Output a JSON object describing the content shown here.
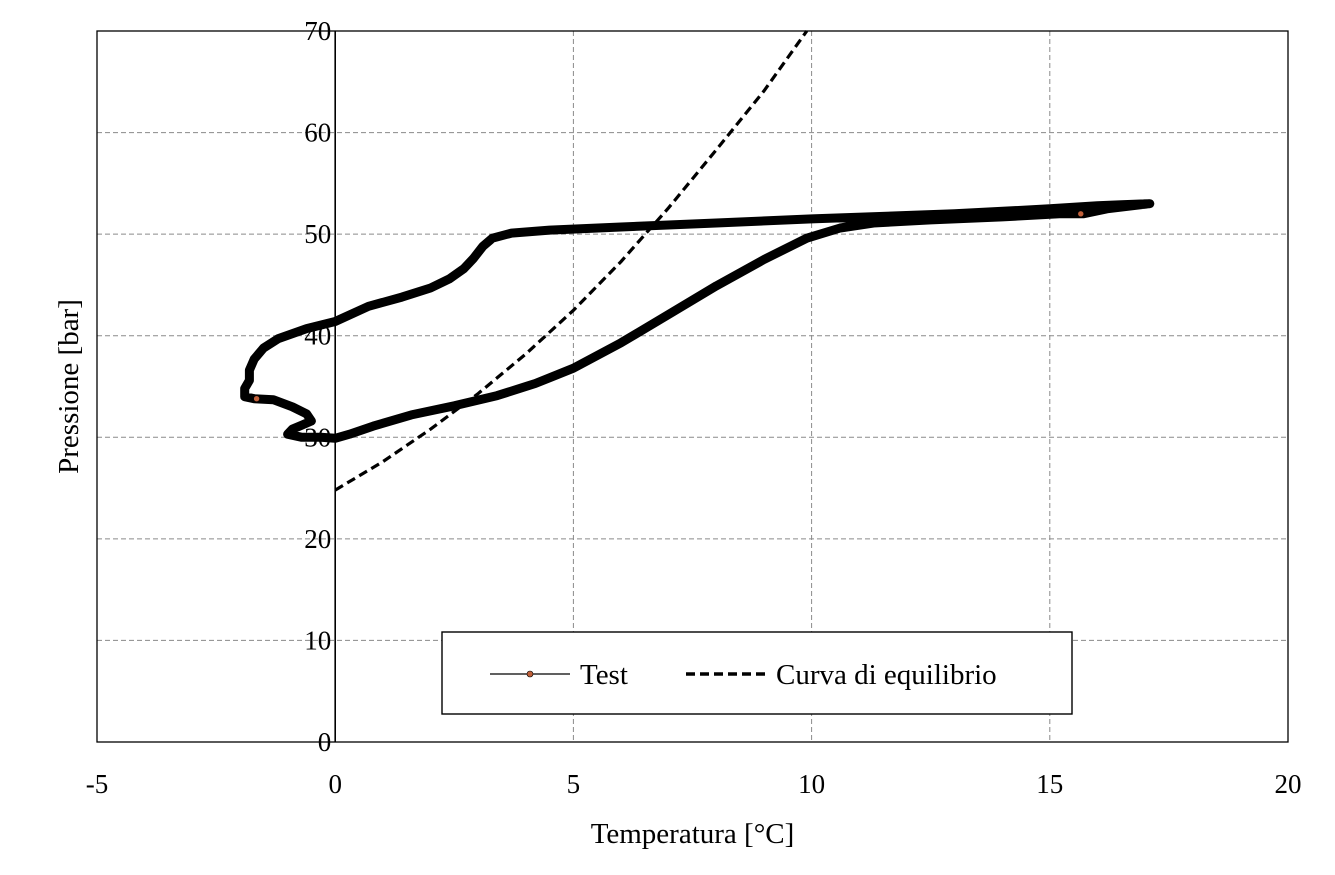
{
  "chart_data": {
    "type": "line",
    "title": "",
    "xlabel": "Temperatura [°C]",
    "ylabel": "Pressione [bar]",
    "xlim": [
      -5,
      20
    ],
    "ylim": [
      0,
      70
    ],
    "xticks": [
      -5,
      0,
      5,
      10,
      15,
      20
    ],
    "yticks": [
      0,
      10,
      20,
      30,
      40,
      50,
      60,
      70
    ],
    "grid": true,
    "legend_position": "bottom-center",
    "series": [
      {
        "name": "Test",
        "style": "solid-thick",
        "color": "#000000",
        "marker_color": "#c0603a",
        "points": [
          [
            -1.7,
            33.8
          ],
          [
            -1.3,
            33.7
          ],
          [
            -0.9,
            33.0
          ],
          [
            -0.6,
            32.3
          ],
          [
            -0.5,
            31.6
          ],
          [
            -0.7,
            31.2
          ],
          [
            -0.9,
            30.8
          ],
          [
            -1.0,
            30.3
          ],
          [
            -0.7,
            30.0
          ],
          [
            -0.3,
            30.0
          ],
          [
            0.0,
            29.9
          ],
          [
            0.3,
            30.3
          ],
          [
            0.8,
            31.1
          ],
          [
            1.6,
            32.2
          ],
          [
            2.5,
            33.1
          ],
          [
            3.4,
            34.1
          ],
          [
            4.2,
            35.3
          ],
          [
            5.0,
            36.8
          ],
          [
            6.0,
            39.3
          ],
          [
            7.0,
            42.1
          ],
          [
            8.0,
            44.9
          ],
          [
            9.0,
            47.5
          ],
          [
            9.9,
            49.6
          ],
          [
            10.6,
            50.6
          ],
          [
            11.3,
            51.1
          ],
          [
            12.5,
            51.4
          ],
          [
            14.0,
            51.7
          ],
          [
            15.2,
            52.0
          ],
          [
            15.7,
            52.0
          ],
          [
            16.2,
            52.5
          ],
          [
            17.1,
            53.0
          ],
          [
            16.5,
            52.9
          ],
          [
            16.0,
            52.8
          ],
          [
            15.0,
            52.5
          ],
          [
            13.0,
            52.0
          ],
          [
            10.0,
            51.5
          ],
          [
            8.0,
            51.1
          ],
          [
            6.0,
            50.7
          ],
          [
            4.5,
            50.4
          ],
          [
            3.7,
            50.1
          ],
          [
            3.3,
            49.6
          ],
          [
            3.1,
            48.8
          ],
          [
            2.9,
            47.6
          ],
          [
            2.7,
            46.6
          ],
          [
            2.4,
            45.6
          ],
          [
            2.0,
            44.7
          ],
          [
            1.4,
            43.8
          ],
          [
            0.7,
            42.9
          ],
          [
            0.0,
            41.4
          ],
          [
            -0.6,
            40.7
          ],
          [
            -1.2,
            39.7
          ],
          [
            -1.5,
            38.8
          ],
          [
            -1.7,
            37.7
          ],
          [
            -1.8,
            36.6
          ],
          [
            -1.8,
            35.6
          ],
          [
            -1.9,
            34.8
          ],
          [
            -1.9,
            34.0
          ],
          [
            -1.7,
            33.8
          ]
        ]
      },
      {
        "name": "Curva di equilibrio",
        "style": "dashed",
        "color": "#000000",
        "points": [
          [
            0.0,
            24.8
          ],
          [
            1.0,
            27.6
          ],
          [
            2.0,
            30.8
          ],
          [
            3.0,
            34.3
          ],
          [
            4.0,
            38.2
          ],
          [
            5.0,
            42.5
          ],
          [
            6.0,
            47.3
          ],
          [
            7.0,
            52.6
          ],
          [
            8.0,
            58.3
          ],
          [
            9.0,
            64.1
          ],
          [
            9.9,
            70.0
          ]
        ]
      }
    ],
    "markers": [
      {
        "series": "Test",
        "x": -1.65,
        "y": 33.8
      },
      {
        "series": "Test",
        "x": 15.65,
        "y": 52.0
      }
    ]
  }
}
